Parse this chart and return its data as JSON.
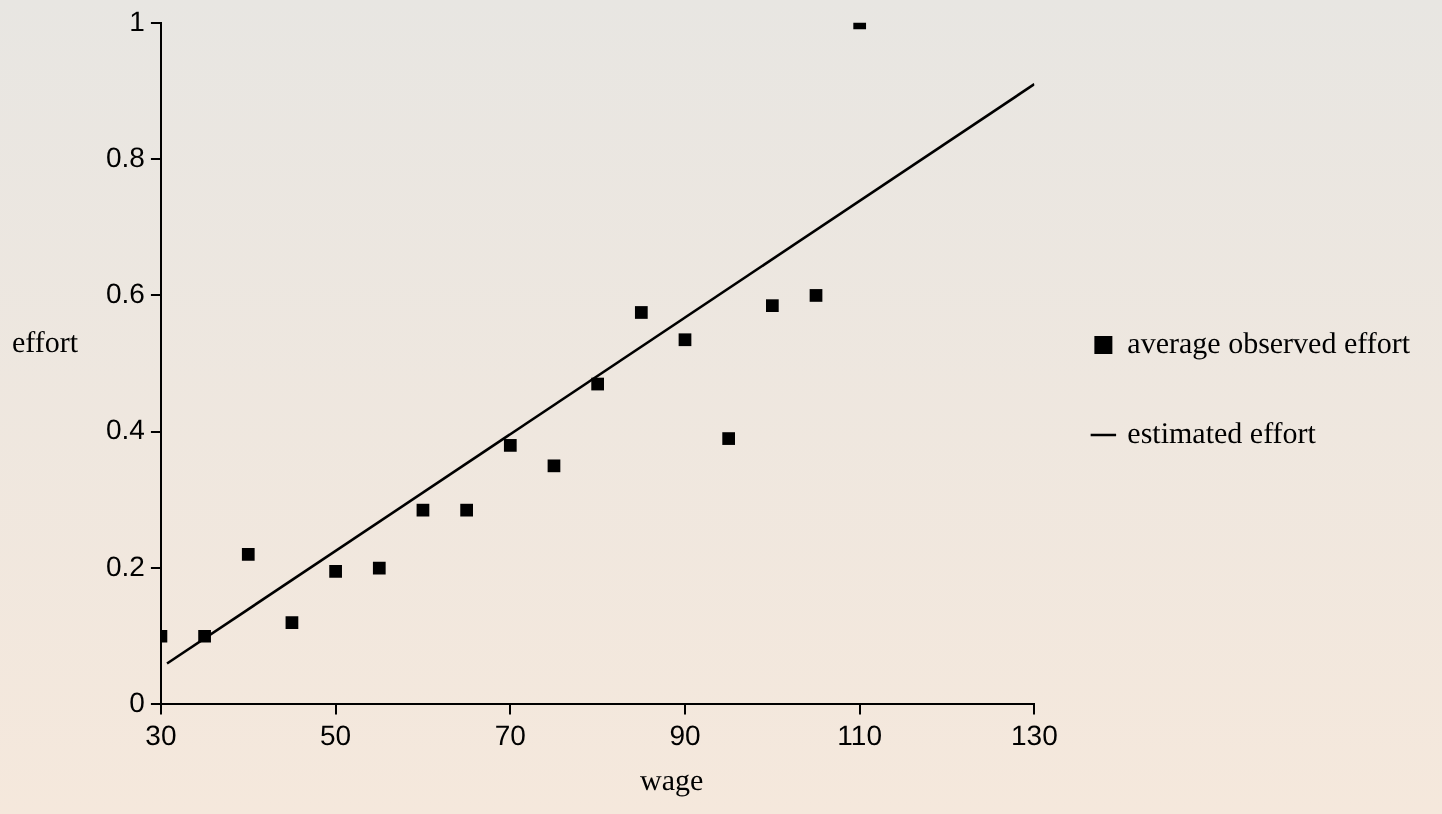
{
  "chart_data": {
    "type": "scatter",
    "xlabel": "wage",
    "ylabel": "effort",
    "xlim": [
      30,
      130
    ],
    "xticks": [
      30,
      50,
      70,
      90,
      110,
      130
    ],
    "ylim": [
      0,
      1
    ],
    "yticks": [
      0,
      0.2,
      0.4,
      0.6,
      0.8,
      1
    ],
    "grid": false,
    "legend": "right",
    "series": [
      {
        "name": "average observed effort",
        "marker": "square",
        "color": "#000000",
        "x": [
          30,
          35,
          40,
          45,
          50,
          55,
          60,
          65,
          70,
          75,
          80,
          85,
          90,
          95,
          100,
          105,
          110
        ],
        "values": [
          0.1,
          0.1,
          0.22,
          0.12,
          0.195,
          0.2,
          0.285,
          0.285,
          0.38,
          0.35,
          0.47,
          0.575,
          0.535,
          0.39,
          0.585,
          0.6,
          1.0
        ]
      },
      {
        "name": "estimated effort",
        "type": "line",
        "marker": "none",
        "line_style": "solid",
        "color": "#000000",
        "x": [
          30.7,
          130
        ],
        "values": [
          0.06,
          0.91
        ]
      }
    ]
  }
}
